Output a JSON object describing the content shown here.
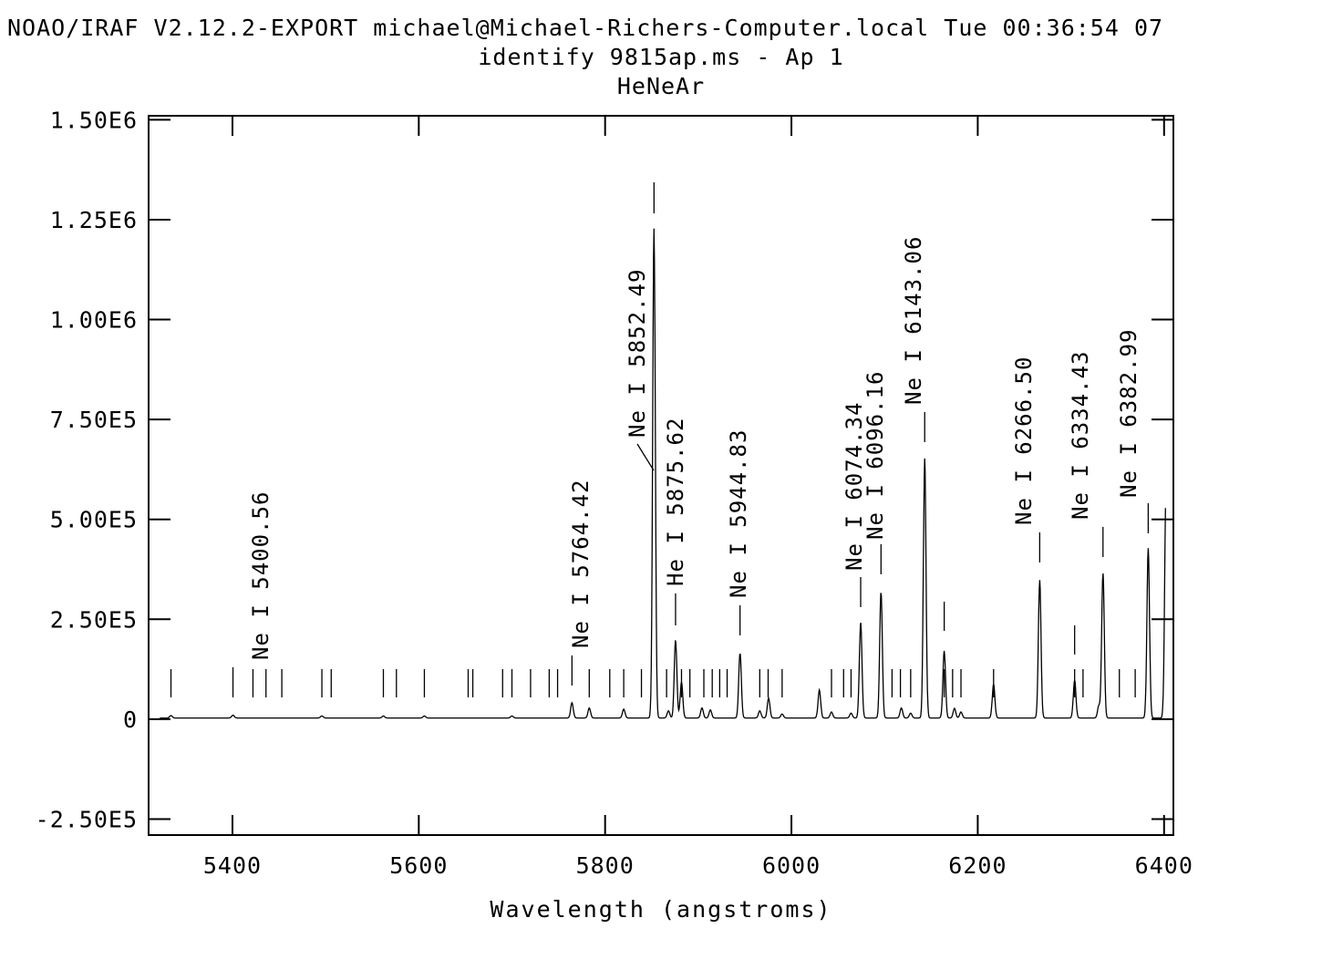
{
  "header": {
    "line1": "NOAO/IRAF V2.12.2-EXPORT michael@Michael-Richers-Computer.local Tue 00:36:54 07",
    "line2": "identify 9815ap.ms - Ap 1",
    "line3": "HeNeAr"
  },
  "chart_data": {
    "type": "line",
    "title": "identify 9815ap.ms - Ap 1",
    "subtitle": "HeNeAr",
    "xlabel": "Wavelength (angstroms)",
    "ylabel": "",
    "xlim": [
      5310,
      6410
    ],
    "ylim": [
      -290000,
      1510000
    ],
    "xticks": [
      5400,
      5600,
      5800,
      6000,
      6200,
      6400
    ],
    "xtick_labels": [
      "5400",
      "5600",
      "5800",
      "6000",
      "6200",
      "6400"
    ],
    "yticks": [
      -250000,
      0,
      250000,
      500000,
      750000,
      1000000,
      1250000,
      1500000
    ],
    "ytick_labels": [
      "-2.50E5",
      "0",
      "2.50E5",
      "5.00E5",
      "7.50E5",
      "1.00E6",
      "1.25E6",
      "1.50E6"
    ],
    "grid": false,
    "continuum": 3000,
    "peaks": [
      [
        5334,
        6000
      ],
      [
        5400.56,
        7000
      ],
      [
        5496,
        5000
      ],
      [
        5562,
        5000
      ],
      [
        5606,
        5000
      ],
      [
        5700,
        5000
      ],
      [
        5764.42,
        38000
      ],
      [
        5783,
        25000
      ],
      [
        5820,
        22000
      ],
      [
        5852.49,
        1225000
      ],
      [
        5868,
        18000
      ],
      [
        5875.62,
        195000
      ],
      [
        5882,
        90000
      ],
      [
        5904,
        25000
      ],
      [
        5913,
        20000
      ],
      [
        5944.83,
        162000
      ],
      [
        5966,
        18000
      ],
      [
        5975.5,
        50000
      ],
      [
        5990,
        10000
      ],
      [
        6030,
        70000
      ],
      [
        6043,
        15000
      ],
      [
        6064,
        12000
      ],
      [
        6074.34,
        240000
      ],
      [
        6096.16,
        315000
      ],
      [
        6118,
        25000
      ],
      [
        6128,
        12000
      ],
      [
        6143.06,
        650000
      ],
      [
        6164,
        168000
      ],
      [
        6175,
        24000
      ],
      [
        6182,
        15000
      ],
      [
        6217,
        85000
      ],
      [
        6266.5,
        345000
      ],
      [
        6304,
        95000
      ],
      [
        6330,
        30000
      ],
      [
        6334.43,
        362000
      ],
      [
        6382.99,
        425000
      ],
      [
        6402,
        560000
      ]
    ],
    "identified_lines": [
      {
        "wavelength": 5400.56,
        "label": "Ne I 5400.56"
      },
      {
        "wavelength": 5764.42,
        "label": "Ne I 5764.42"
      },
      {
        "wavelength": 5852.49,
        "label": "Ne I 5852.49"
      },
      {
        "wavelength": 5875.62,
        "label": "He I 5875.62"
      },
      {
        "wavelength": 5944.83,
        "label": "Ne I 5944.83"
      },
      {
        "wavelength": 6074.34,
        "label": "Ne I 6074.34"
      },
      {
        "wavelength": 6096.16,
        "label": "Ne I 6096.16"
      },
      {
        "wavelength": 6143.06,
        "label": "Ne I 6143.06"
      },
      {
        "wavelength": 6266.5,
        "label": "Ne I 6266.50"
      },
      {
        "wavelength": 6334.43,
        "label": "Ne I 6334.43"
      },
      {
        "wavelength": 6382.99,
        "label": "Ne I 6382.99"
      }
    ],
    "line_list_markers": [
      5334,
      5422,
      5436,
      5453,
      5496,
      5506,
      5562,
      5576,
      5606,
      5653,
      5658,
      5690,
      5700,
      5720,
      5740,
      5749,
      5783,
      5805,
      5820,
      5839,
      5866,
      5882,
      5891,
      5906,
      5915,
      5923,
      5931,
      5966,
      5975,
      5990,
      6043,
      6056,
      6064,
      6108,
      6117,
      6128,
      6164,
      6173,
      6182,
      6217,
      6304,
      6313,
      6352,
      6369
    ],
    "strong_tick_markers": [
      5852.49,
      6164,
      6304
    ]
  }
}
